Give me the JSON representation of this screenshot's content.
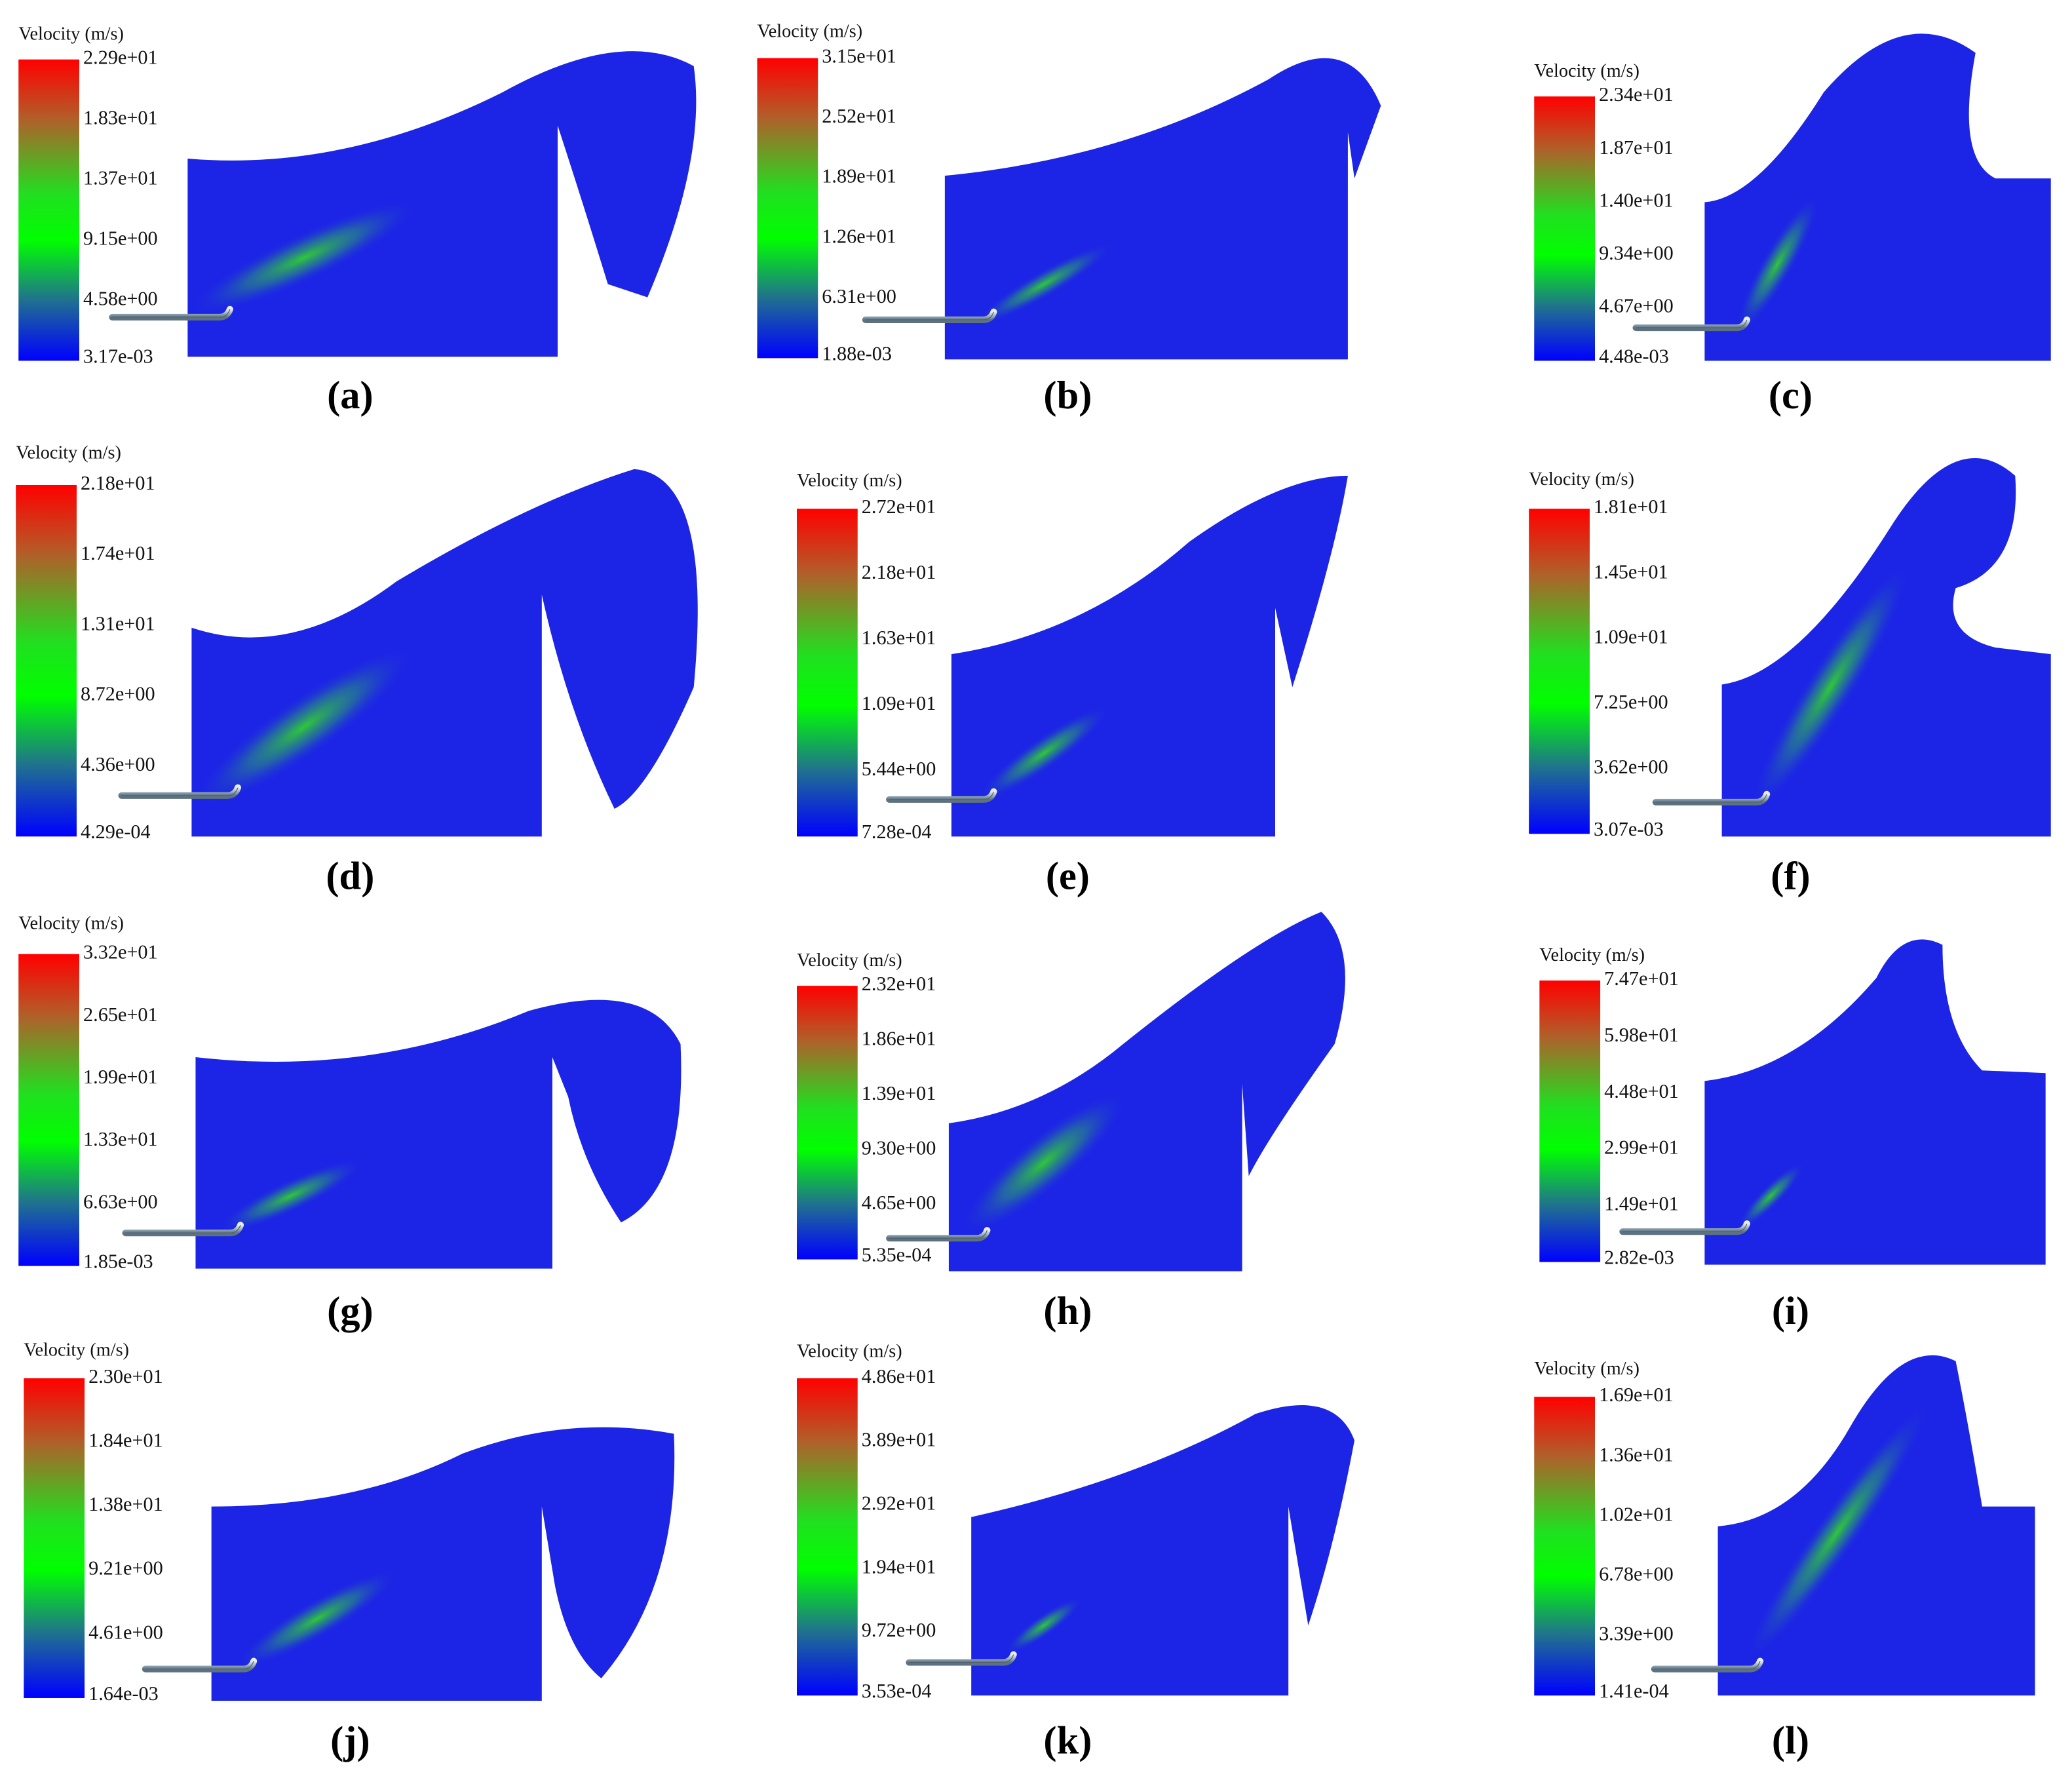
{
  "panels": [
    {
      "caption": "(a)",
      "legend_title": "Velocity (m/s)",
      "ticks": [
        "2.29e+01",
        "1.83e+01",
        "1.37e+01",
        "9.15e+00",
        "4.58e+00",
        "3.17e-03"
      ]
    },
    {
      "caption": "(b)",
      "legend_title": "Velocity (m/s)",
      "ticks": [
        "3.15e+01",
        "2.52e+01",
        "1.89e+01",
        "1.26e+01",
        "6.31e+00",
        "1.88e-03"
      ]
    },
    {
      "caption": "(c)",
      "legend_title": "Velocity (m/s)",
      "ticks": [
        "2.34e+01",
        "1.87e+01",
        "1.40e+01",
        "9.34e+00",
        "4.67e+00",
        "4.48e-03"
      ]
    },
    {
      "caption": "(d)",
      "legend_title": "Velocity (m/s)",
      "ticks": [
        "2.18e+01",
        "1.74e+01",
        "1.31e+01",
        "8.72e+00",
        "4.36e+00",
        "4.29e-04"
      ]
    },
    {
      "caption": "(e)",
      "legend_title": "Velocity (m/s)",
      "ticks": [
        "2.72e+01",
        "2.18e+01",
        "1.63e+01",
        "1.09e+01",
        "5.44e+00",
        "7.28e-04"
      ]
    },
    {
      "caption": "(f)",
      "legend_title": "Velocity (m/s)",
      "ticks": [
        "1.81e+01",
        "1.45e+01",
        "1.09e+01",
        "7.25e+00",
        "3.62e+00",
        "3.07e-03"
      ]
    },
    {
      "caption": "(g)",
      "legend_title": "Velocity (m/s)",
      "ticks": [
        "3.32e+01",
        "2.65e+01",
        "1.99e+01",
        "1.33e+01",
        "6.63e+00",
        "1.85e-03"
      ]
    },
    {
      "caption": "(h)",
      "legend_title": "Velocity (m/s)",
      "ticks": [
        "2.32e+01",
        "1.86e+01",
        "1.39e+01",
        "9.30e+00",
        "4.65e+00",
        "5.35e-04"
      ]
    },
    {
      "caption": "(i)",
      "legend_title": "Velocity (m/s)",
      "ticks": [
        "7.47e+01",
        "5.98e+01",
        "4.48e+01",
        "2.99e+01",
        "1.49e+01",
        "2.82e-03"
      ]
    },
    {
      "caption": "(j)",
      "legend_title": "Velocity (m/s)",
      "ticks": [
        "2.30e+01",
        "1.84e+01",
        "1.38e+01",
        "9.21e+00",
        "4.61e+00",
        "1.64e-03"
      ]
    },
    {
      "caption": "(k)",
      "legend_title": "Velocity (m/s)",
      "ticks": [
        "4.86e+01",
        "3.89e+01",
        "2.92e+01",
        "1.94e+01",
        "9.72e+00",
        "3.53e-04"
      ]
    },
    {
      "caption": "(l)",
      "legend_title": "Velocity (m/s)",
      "ticks": [
        "1.69e+01",
        "1.36e+01",
        "1.02e+01",
        "6.78e+00",
        "3.39e+00",
        "1.41e-04"
      ]
    }
  ]
}
